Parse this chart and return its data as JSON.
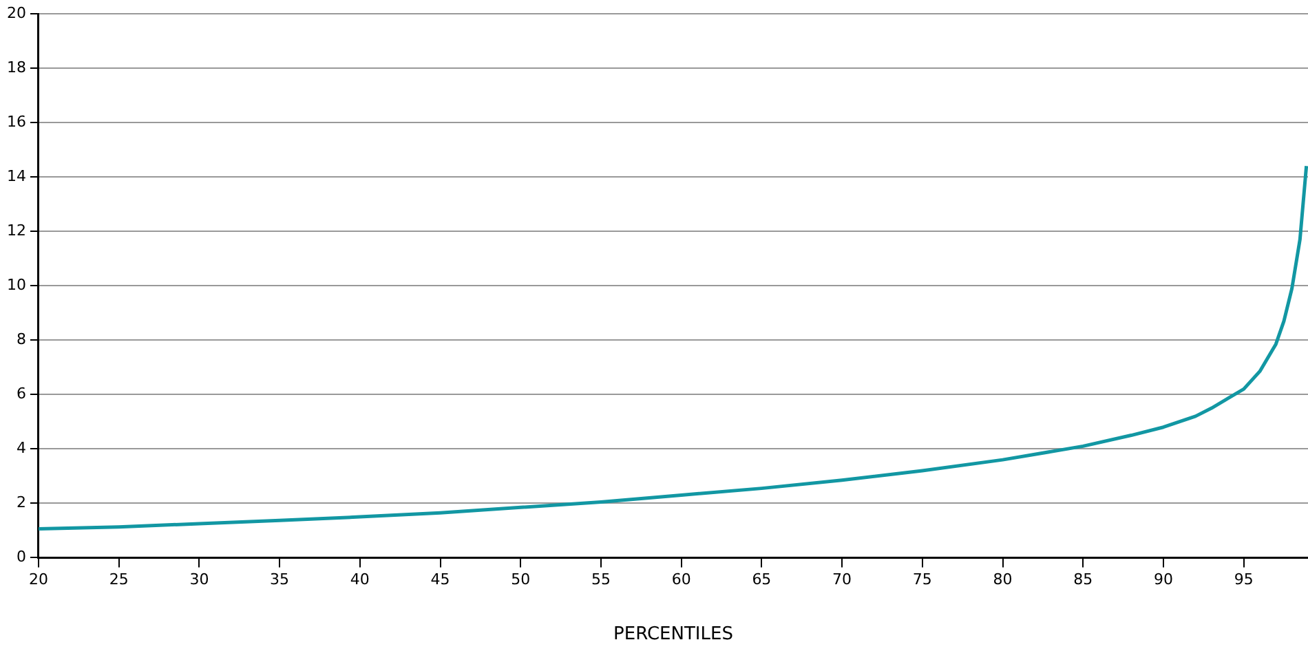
{
  "chart_data": {
    "type": "line",
    "xlabel": "PERCENTILES",
    "x": [
      20,
      25,
      30,
      35,
      40,
      45,
      50,
      55,
      60,
      65,
      70,
      75,
      80,
      85,
      88,
      90,
      92,
      93,
      94,
      95,
      96,
      97,
      97.5,
      98,
      98.5,
      98.9
    ],
    "series": [
      {
        "color": "#1297a3",
        "values": [
          1.06,
          1.13,
          1.25,
          1.37,
          1.5,
          1.65,
          1.85,
          2.05,
          2.3,
          2.55,
          2.85,
          3.2,
          3.6,
          4.1,
          4.5,
          4.8,
          5.2,
          5.5,
          5.85,
          6.2,
          6.85,
          7.85,
          8.7,
          9.9,
          11.7,
          14.4
        ]
      }
    ],
    "xlim": [
      20,
      99
    ],
    "xticks": [
      20,
      25,
      30,
      35,
      40,
      45,
      50,
      55,
      60,
      65,
      70,
      75,
      80,
      85,
      90,
      95
    ],
    "ylim": [
      0,
      20
    ],
    "yticks": [
      0,
      2,
      4,
      6,
      8,
      10,
      12,
      14,
      16,
      18,
      20
    ],
    "grid": "y",
    "legend": false,
    "marker": "none",
    "line_style": "solid"
  }
}
